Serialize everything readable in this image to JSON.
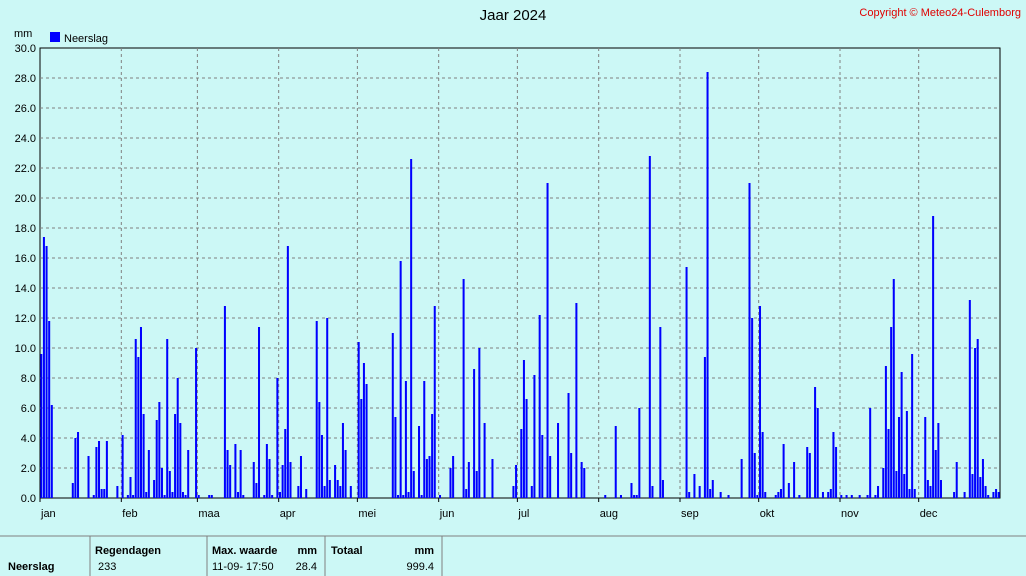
{
  "chart_data": {
    "type": "bar",
    "title": "Jaar 2024",
    "copyright": "Copyright © Meteo24-Culemborg",
    "y_unit": "mm",
    "grid": true,
    "legend": "top-left",
    "ylim": [
      0,
      30
    ],
    "yticks": [
      {
        "value": 0,
        "label": "0.0"
      },
      {
        "value": 2,
        "label": "2.0"
      },
      {
        "value": 4,
        "label": "4.0"
      },
      {
        "value": 6,
        "label": "6.0"
      },
      {
        "value": 8,
        "label": "8.0"
      },
      {
        "value": 10,
        "label": "10.0"
      },
      {
        "value": 12,
        "label": "12.0"
      },
      {
        "value": 14,
        "label": "14.0"
      },
      {
        "value": 16,
        "label": "16.0"
      },
      {
        "value": 18,
        "label": "18.0"
      },
      {
        "value": 20,
        "label": "20.0"
      },
      {
        "value": 22,
        "label": "22.0"
      },
      {
        "value": 24,
        "label": "24.0"
      },
      {
        "value": 26,
        "label": "26.0"
      },
      {
        "value": 28,
        "label": "28.0"
      },
      {
        "value": 30,
        "label": "30.0"
      }
    ],
    "xticks": [
      {
        "value": 0,
        "label": "jan"
      },
      {
        "value": 31,
        "label": "feb"
      },
      {
        "value": 60,
        "label": "maa"
      },
      {
        "value": 91,
        "label": "apr"
      },
      {
        "value": 121,
        "label": "mei"
      },
      {
        "value": 152,
        "label": "jun"
      },
      {
        "value": 182,
        "label": "jul"
      },
      {
        "value": 213,
        "label": "aug"
      },
      {
        "value": 244,
        "label": "sep"
      },
      {
        "value": 274,
        "label": "okt"
      },
      {
        "value": 305,
        "label": "nov"
      },
      {
        "value": 335,
        "label": "dec"
      }
    ],
    "series": [
      {
        "name": "Neerslag",
        "color": "#0000ff",
        "values": [
          9.6,
          17.4,
          16.8,
          11.8,
          6.2,
          0,
          0,
          0,
          0,
          0,
          0,
          0,
          1.0,
          4.0,
          4.4,
          0,
          0,
          0,
          2.8,
          0,
          0.2,
          3.4,
          3.8,
          0.6,
          0.6,
          3.8,
          0,
          0,
          0,
          0.8,
          0,
          4.2,
          0,
          0.2,
          1.4,
          0.2,
          10.6,
          9.4,
          11.4,
          5.6,
          0.4,
          3.2,
          0,
          1.2,
          5.2,
          6.4,
          2.0,
          0.2,
          10.6,
          1.8,
          0.4,
          5.6,
          8.0,
          5.0,
          0.4,
          0.2,
          3.2,
          0,
          0,
          10.0,
          0.2,
          0,
          0,
          0,
          0.2,
          0.2,
          0,
          0,
          0,
          0,
          12.8,
          3.2,
          2.2,
          0,
          3.6,
          0.4,
          3.2,
          0.2,
          0,
          0,
          0,
          2.4,
          1.0,
          11.4,
          0,
          0.2,
          3.6,
          2.6,
          0.2,
          0,
          8.0,
          0.4,
          2.2,
          4.6,
          16.8,
          2.4,
          0,
          0,
          0.8,
          2.8,
          0,
          0.6,
          0,
          0,
          0,
          11.8,
          6.4,
          4.2,
          0.8,
          12.0,
          1.2,
          0,
          2.2,
          1.2,
          0.8,
          5.0,
          3.2,
          0,
          0.8,
          0,
          0,
          10.4,
          6.6,
          9.0,
          7.6,
          0,
          0,
          0,
          0,
          0,
          0,
          0,
          0,
          0,
          11.0,
          5.4,
          0.2,
          15.8,
          0.2,
          7.8,
          0.4,
          22.6,
          1.8,
          0,
          4.8,
          0.2,
          7.8,
          2.6,
          2.8,
          5.6,
          12.8,
          0,
          0.2,
          0,
          0,
          0,
          2.0,
          2.8,
          0,
          0,
          0,
          14.6,
          0.6,
          2.4,
          0,
          8.6,
          1.8,
          10.0,
          0,
          5.0,
          0,
          0,
          2.6,
          0,
          0,
          0,
          0,
          0,
          0,
          0,
          0.8,
          2.2,
          0,
          4.6,
          9.2,
          6.6,
          0,
          0.8,
          8.2,
          0,
          12.2,
          4.2,
          0,
          21.0,
          2.8,
          0,
          0,
          5.0,
          0,
          0,
          0,
          7.0,
          3.0,
          0,
          13.0,
          0,
          2.4,
          2.0,
          0,
          0,
          0,
          0,
          0,
          0,
          0,
          0.2,
          0,
          0,
          0,
          4.8,
          0,
          0.2,
          0,
          0,
          0,
          1.0,
          0.2,
          0.2,
          6.0,
          0,
          0,
          0,
          22.8,
          0.8,
          0,
          0,
          11.4,
          1.2,
          0,
          0,
          0,
          0,
          0,
          0,
          0,
          0,
          15.4,
          0.4,
          0,
          1.6,
          0,
          0.8,
          0,
          9.4,
          28.4,
          0.6,
          1.2,
          0,
          0,
          0.4,
          0,
          0,
          0.2,
          0,
          0,
          0,
          0,
          2.6,
          0,
          0,
          21.0,
          12.0,
          3.0,
          0.2,
          12.8,
          4.4,
          0.4,
          0,
          0,
          0,
          0.2,
          0.4,
          0.6,
          3.6,
          0,
          1.0,
          0,
          2.4,
          0,
          0.2,
          0,
          0,
          3.4,
          3.0,
          0,
          7.4,
          6.0,
          0,
          0.4,
          0,
          0.4,
          0.6,
          4.4,
          3.4,
          0,
          0.2,
          0,
          0.2,
          0,
          0.2,
          0,
          0,
          0.2,
          0,
          0,
          0.2,
          6.0,
          0,
          0.2,
          0.8,
          0,
          2.0,
          8.8,
          4.6,
          11.4,
          14.6,
          1.8,
          5.4,
          8.4,
          1.6,
          5.8,
          0.6,
          9.6,
          0.6,
          0,
          0,
          0,
          5.4,
          1.2,
          0.8,
          18.8,
          3.2,
          5.0,
          1.2,
          0,
          0,
          0,
          0,
          0.4,
          2.4,
          0,
          0,
          0.4,
          0,
          13.2,
          1.6,
          10.0,
          10.6,
          1.4,
          2.6,
          0.8,
          0.2,
          0,
          0.4,
          0.6,
          0.4
        ]
      }
    ]
  },
  "summary": {
    "row_label": "Neerslag",
    "regendagen": {
      "header": "Regendagen",
      "value": "233"
    },
    "max": {
      "header": "Max. waarde",
      "unit": "mm",
      "date": "11-09- 17:50",
      "value": "28.4"
    },
    "totaal": {
      "header": "Totaal",
      "unit": "mm",
      "value": "999.4"
    }
  }
}
